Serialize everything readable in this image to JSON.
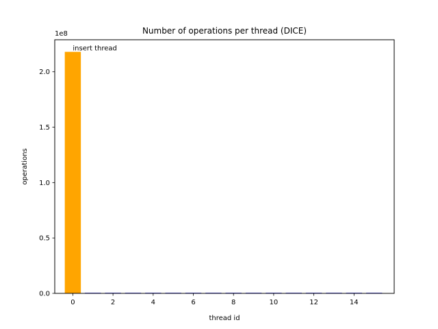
{
  "chart_data": {
    "type": "bar",
    "title": "Number of operations per thread (DICE)",
    "xlabel": "thread id",
    "ylabel": "operations",
    "offset_text": "1e8",
    "x": [
      0,
      1,
      2,
      3,
      4,
      5,
      6,
      7,
      8,
      9,
      10,
      11,
      12,
      13,
      14,
      15
    ],
    "values": [
      218000000,
      500000,
      500000,
      500000,
      500000,
      500000,
      500000,
      500000,
      500000,
      500000,
      500000,
      500000,
      500000,
      500000,
      500000,
      500000
    ],
    "bar_colors": [
      "#ffa500",
      "#0000ff",
      "#0000ff",
      "#0000ff",
      "#0000ff",
      "#0000ff",
      "#0000ff",
      "#0000ff",
      "#0000ff",
      "#0000ff",
      "#0000ff",
      "#0000ff",
      "#0000ff",
      "#0000ff",
      "#0000ff",
      "#0000ff"
    ],
    "xlim": [
      -0.9,
      16.0
    ],
    "ylim": [
      0,
      228900000
    ],
    "xticks": [
      0,
      2,
      4,
      6,
      8,
      10,
      12,
      14
    ],
    "xtick_labels": [
      "0",
      "2",
      "4",
      "6",
      "8",
      "10",
      "12",
      "14"
    ],
    "yticks": [
      0,
      50000000,
      100000000,
      150000000,
      200000000
    ],
    "ytick_labels": [
      "0.0",
      "0.5",
      "1.0",
      "1.5",
      "2.0"
    ],
    "annotations": [
      {
        "text": "insert thread",
        "x": 0,
        "y": 218000000
      }
    ],
    "grid": false
  }
}
